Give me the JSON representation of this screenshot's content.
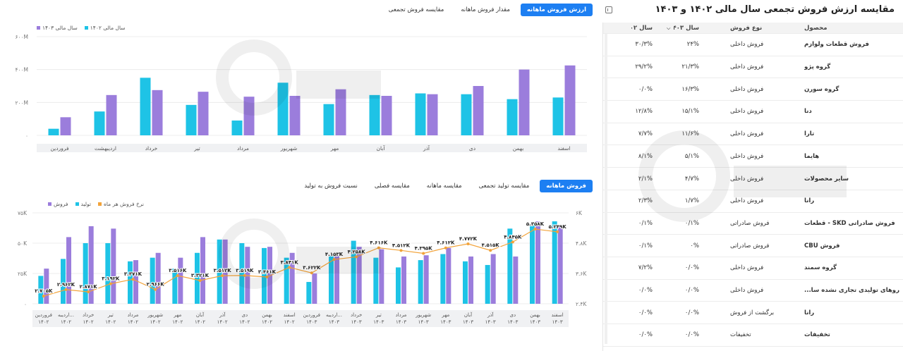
{
  "colors": {
    "cyan": "#1ec3e6",
    "purple": "#9b7ddc",
    "orange": "#f2a33a",
    "accent": "#1d7ff2"
  },
  "table": {
    "title": "مقایسه ارزش فروش تجمعی سال مالی ۱۴۰۲ و ۱۴۰۳",
    "icon": "panel-toggle-icon",
    "headers": {
      "product": "محصول",
      "type": "نوع فروش",
      "y1403": "سال ۱۴۰۳",
      "y1402": "سال ۱۴۰۲"
    },
    "rows": [
      {
        "product": "فروش قطعات ولوازم",
        "type": "فروش داخلی",
        "y1403": "۲۴%",
        "y1402": "۳۰/۳%"
      },
      {
        "product": "گروه پژو",
        "type": "فروش داخلی",
        "y1403": "۲۱/۳%",
        "y1402": "۲۹/۲%"
      },
      {
        "product": "گروه سورن",
        "type": "فروش داخلی",
        "y1403": "۱۶/۳%",
        "y1402": "۰/۰%"
      },
      {
        "product": "دنا",
        "type": "فروش داخلی",
        "y1403": "۱۵/۱%",
        "y1402": "۱۲/۸%"
      },
      {
        "product": "تارا",
        "type": "فروش داخلی",
        "y1403": "۱۱/۶%",
        "y1402": "۷/۷%"
      },
      {
        "product": "هایما",
        "type": "فروش داخلی",
        "y1403": "۵/۱%",
        "y1402": "۸/۱%"
      },
      {
        "product": "سایر محصولات",
        "type": "فروش داخلی",
        "y1403": "۴/۷%",
        "y1402": "۲/۱%"
      },
      {
        "product": "رانا",
        "type": "فروش داخلی",
        "y1403": "۱/۷%",
        "y1402": "۲/۳%"
      },
      {
        "product": "فروش صادراتی SKD - قطعات",
        "type": "فروش صادراتی",
        "y1403": "۰/۱%",
        "y1402": "۰/۱%"
      },
      {
        "product": "فروش CBU",
        "type": "فروش صادراتی",
        "y1403": "۰%",
        "y1402": "۰/۱%"
      },
      {
        "product": "گروه سمند",
        "type": "فروش داخلی",
        "y1403": "۰/۰%",
        "y1402": "۷/۲%"
      },
      {
        "product": "خودروهای تولیدی تجاری نشده سا...",
        "type": "فروش داخلی",
        "y1403": "۰/۰%",
        "y1402": "۰/۰%"
      },
      {
        "product": "رانا",
        "type": "برگشت از فروش",
        "y1403": "۰/۰%",
        "y1402": "۰/۰%"
      },
      {
        "product": "تخفیفات",
        "type": "تخفیفات",
        "y1403": "۰/۰%",
        "y1402": "۰/۰%"
      }
    ]
  },
  "top_tabs": [
    {
      "label": "ارزش فروش ماهانه",
      "active": true
    },
    {
      "label": "مقدار فروش ماهانه",
      "active": false
    },
    {
      "label": "مقایسه فروش تجمعی",
      "active": false
    }
  ],
  "bottom_tabs": [
    {
      "label": "فروش ماهانه",
      "active": true
    },
    {
      "label": "مقایسه تولید تجمعی",
      "active": false
    },
    {
      "label": "مقایسه ماهانه",
      "active": false
    },
    {
      "label": "مقایسه فصلی",
      "active": false
    },
    {
      "label": "نسبت فروش به تولید",
      "active": false
    }
  ],
  "chart_data": [
    {
      "type": "bar",
      "legend": [
        "سال مالی ۱۴۰۳",
        "سال مالی ۱۴۰۲"
      ],
      "categories": [
        "اسفند",
        "بهمن",
        "دی",
        "آذر",
        "آبان",
        "مهر",
        "شهریور",
        "مرداد",
        "تیر",
        "خرداد",
        "اردیبهشت",
        "فروردین"
      ],
      "yticks": [
        "۰",
        "۲۰۰M",
        "۴۰۰M",
        "۶۰۰M"
      ],
      "ylim": [
        0,
        600
      ],
      "series": [
        {
          "name": "سال مالی ۱۴۰۳",
          "color": "#9b7ddc",
          "values": [
            425,
            400,
            300,
            250,
            240,
            280,
            240,
            235,
            265,
            275,
            245,
            110
          ]
        },
        {
          "name": "سال مالی ۱۴۰۲",
          "color": "#1ec3e6",
          "values": [
            230,
            220,
            250,
            255,
            245,
            190,
            320,
            90,
            185,
            350,
            145,
            40
          ]
        }
      ]
    },
    {
      "type": "bar+line",
      "legend": [
        "فروش",
        "تولید",
        "نرخ فروش هر ماه"
      ],
      "categories": [
        [
          "اسفند",
          "۱۴۰۳"
        ],
        [
          "بهمن",
          "۱۴۰۳"
        ],
        [
          "دی",
          "۱۴۰۳"
        ],
        [
          "آذر",
          "۱۴۰۳"
        ],
        [
          "آبان",
          "۱۴۰۳"
        ],
        [
          "مهر",
          "۱۴۰۳"
        ],
        [
          "شهریور",
          "۱۴۰۳"
        ],
        [
          "مرداد",
          "۱۴۰۳"
        ],
        [
          "تیر",
          "۱۴۰۳"
        ],
        [
          "خرداد",
          "۱۴۰۳"
        ],
        [
          "اردیبه...",
          "۱۴۰۳"
        ],
        [
          "فروردین",
          "۱۴۰۳"
        ],
        [
          "اسفند",
          "۱۴۰۲"
        ],
        [
          "بهمن",
          "۱۴۰۲"
        ],
        [
          "دی",
          "۱۴۰۲"
        ],
        [
          "آذر",
          "۱۴۰۲"
        ],
        [
          "آبان",
          "۱۴۰۲"
        ],
        [
          "مهر",
          "۱۴۰۲"
        ],
        [
          "شهریور",
          "۱۴۰۲"
        ],
        [
          "مرداد",
          "۱۴۰۲"
        ],
        [
          "تیر",
          "۱۴۰۲"
        ],
        [
          "خرداد",
          "۱۴۰۲"
        ],
        [
          "اردیبه...",
          "۱۴۰۲"
        ],
        [
          "فروردین",
          "۱۴۰۲"
        ]
      ],
      "yticks_left": [
        "۰",
        "۲۵K",
        "۵۰K",
        "۷۵K"
      ],
      "ylim_left": [
        0,
        75
      ],
      "yticks_right": [
        "۲.۴K",
        "۳.۶K",
        "۴.۸K",
        "۶K"
      ],
      "ylim_right": [
        2400,
        6000
      ],
      "series": [
        {
          "name": "فروش",
          "color": "#9b7ddc",
          "values": [
            63,
            68,
            39,
            41,
            39,
            46,
            40,
            39,
            45,
            47,
            40,
            25,
            42,
            47,
            47,
            53,
            55,
            38,
            42,
            36,
            62,
            64,
            55,
            29
          ]
        },
        {
          "name": "تولید",
          "color": "#1ec3e6",
          "values": [
            68,
            66,
            62,
            32,
            35,
            41,
            36,
            30,
            38,
            52,
            40,
            18,
            38,
            46,
            50,
            53,
            42,
            29,
            38,
            35,
            50,
            50,
            37,
            23
          ]
        },
        {
          "name": "نرخ فروش هر ماه",
          "color": "#f2a33a",
          "values": [
            5249,
            5358,
            4845,
            4515,
            4772,
            4612,
            4395,
            4512,
            4616,
            4258,
            4153,
            3622,
            3841,
            3461,
            3519,
            3512,
            3321,
            3516,
            2966,
            3371,
            3192,
            2871,
            2962,
            2705
          ],
          "labels": [
            "۵.۲۴۹K",
            "۵.۳۵۸K",
            "۴.۸۴۵K",
            "۴.۵۱۵K",
            "۴.۷۷۲K",
            "۴.۶۱۲K",
            "۴.۳۹۵K",
            "۴.۵۱۲K",
            "۴.۶۱۶K",
            "۴.۲۵۸K",
            "۴.۱۵۳K",
            "۳.۶۲۲K",
            "۳.۸۴۱K",
            "۳.۴۶۱K",
            "۳.۵۱۹K",
            "۳.۵۱۲K",
            "۳.۳۲۱K",
            "۳.۵۱۶K",
            "۲.۹۶۶K",
            "۳.۳۷۱K",
            "۳.۱۹۲K",
            "۲.۸۷۱K",
            "۲.۹۶۲K",
            "۲.۷۰۵K"
          ]
        }
      ]
    }
  ]
}
